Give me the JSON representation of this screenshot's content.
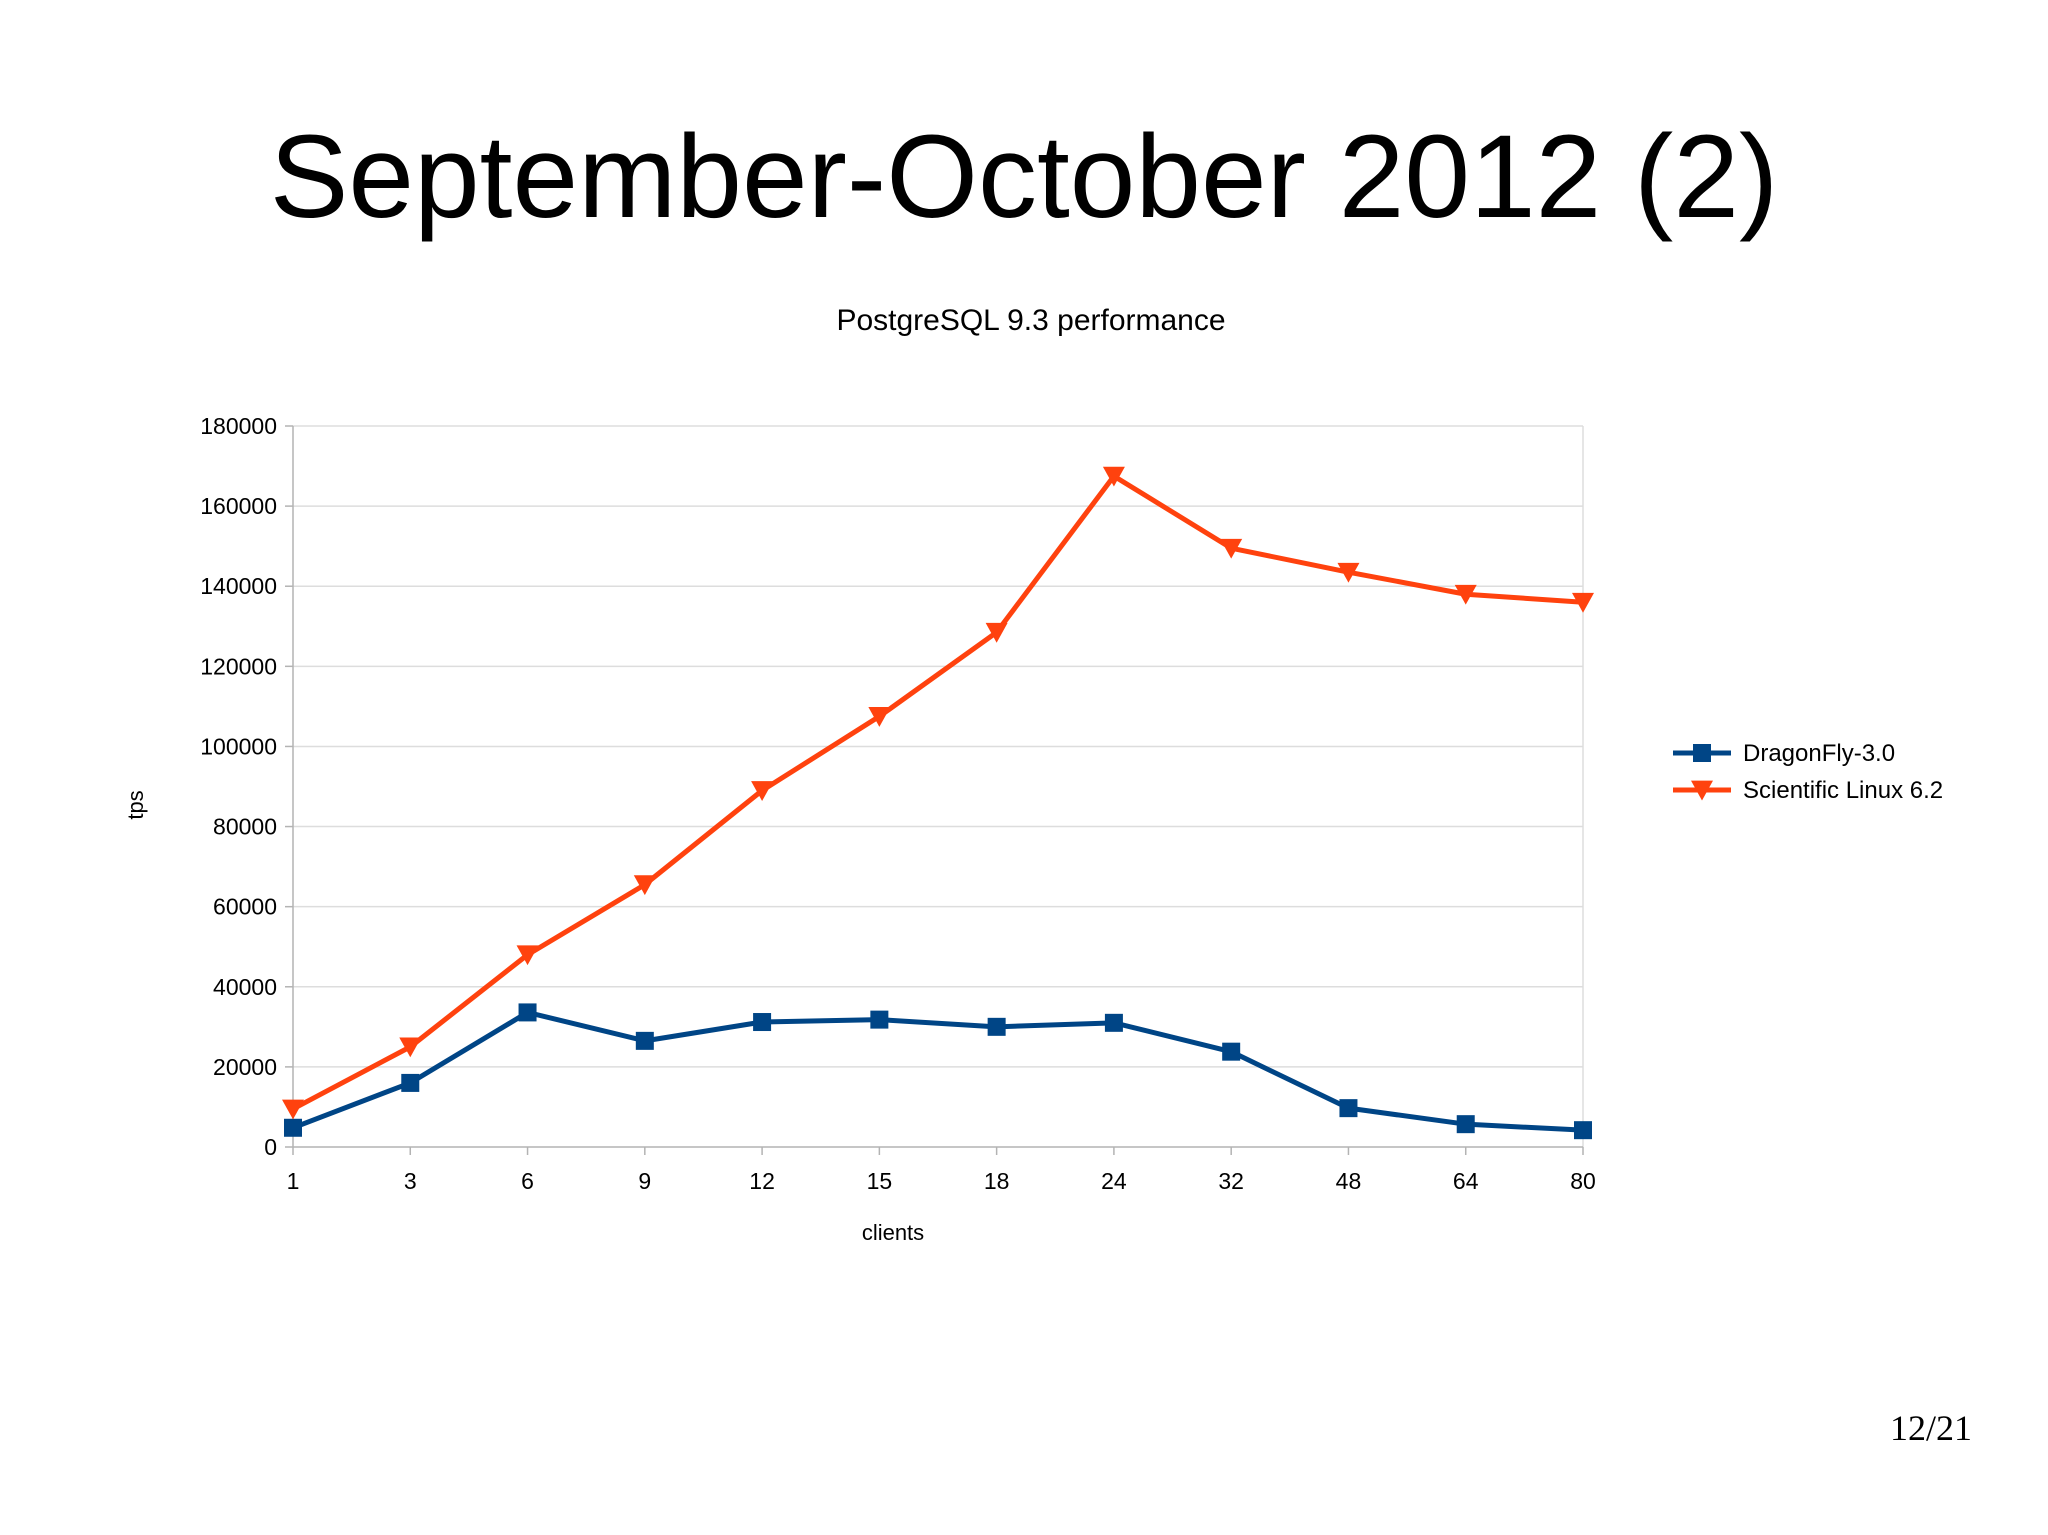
{
  "slide": {
    "title": "September-October 2012 (2)",
    "page_number": "12/21"
  },
  "chart_data": {
    "type": "line",
    "title": "PostgreSQL 9.3 performance",
    "xlabel": "clients",
    "ylabel": "tps",
    "categories": [
      "1",
      "3",
      "6",
      "9",
      "12",
      "15",
      "18",
      "24",
      "32",
      "48",
      "64",
      "80"
    ],
    "ylim": [
      0,
      180000
    ],
    "yticks": [
      0,
      20000,
      40000,
      60000,
      80000,
      100000,
      120000,
      140000,
      160000,
      180000
    ],
    "grid": true,
    "legend": "right",
    "series": [
      {
        "name": "DragonFly-3.0",
        "color": "#004586",
        "marker": "square",
        "values": [
          4800,
          16000,
          33600,
          26500,
          31200,
          31800,
          30000,
          31000,
          23800,
          9700,
          5700,
          4200
        ]
      },
      {
        "name": "Scientific Linux 6.2",
        "color": "#ff420e",
        "marker": "triangle-down",
        "values": [
          9500,
          25000,
          48000,
          65500,
          89000,
          107500,
          128500,
          167500,
          149500,
          143500,
          138000,
          136000
        ]
      }
    ]
  }
}
